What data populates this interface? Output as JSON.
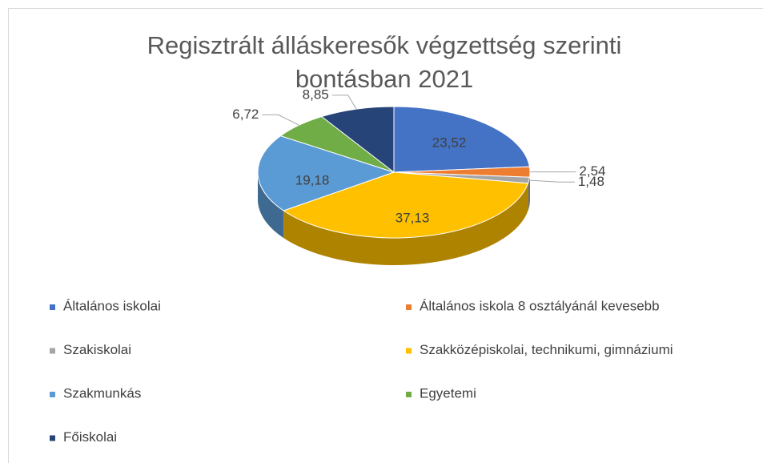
{
  "chart_data": {
    "type": "pie3d",
    "title": "Regisztrált álláskeresők végzettség szerinti bontásban 2021",
    "categories": [
      "Általános iskolai",
      "Általános iskola 8 osztályánál kevesebb",
      "Szakiskolai",
      "Szakközépiskolai, technikumi, gimnáziumi",
      "Szakmunkás",
      "Egyetemi",
      "Főiskolai"
    ],
    "values": [
      23.52,
      2.54,
      1.48,
      37.13,
      19.18,
      6.72,
      8.85
    ],
    "value_labels": [
      "23,52",
      "2,54",
      "1,48",
      "37,13",
      "19,18",
      "6,72",
      "8,85"
    ],
    "colors": [
      "#4472c4",
      "#ed7d31",
      "#a5a5a5",
      "#ffc000",
      "#5b9bd5",
      "#70ad47",
      "#264478"
    ],
    "legend": "bottom"
  }
}
